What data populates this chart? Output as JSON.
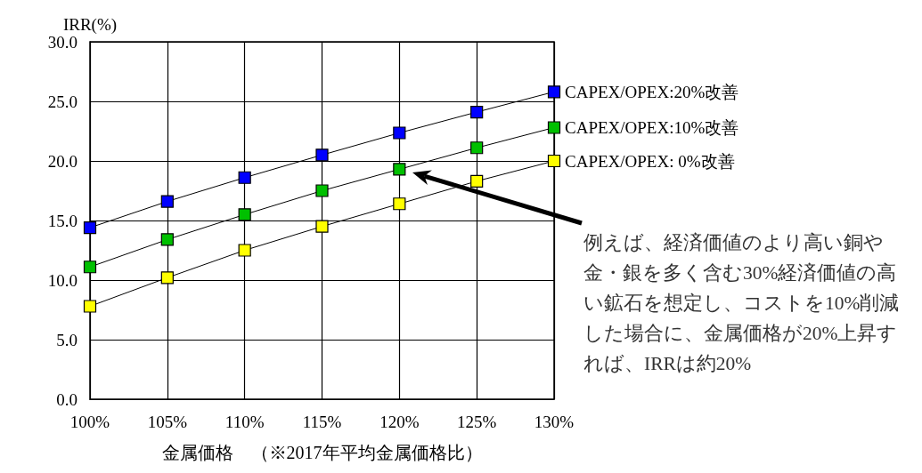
{
  "chart_data": {
    "type": "line",
    "ylabel": "IRR(%)",
    "xlabel": "金属価格　（※2017年平均金属価格比）",
    "categories": [
      "100%",
      "105%",
      "110%",
      "115%",
      "120%",
      "125%",
      "130%"
    ],
    "series": [
      {
        "name": "CAPEX/OPEX:20%改善",
        "color": "#0000ff",
        "values": [
          14.4,
          16.6,
          18.6,
          20.5,
          22.35,
          24.1,
          25.8
        ]
      },
      {
        "name": "CAPEX/OPEX:10%改善",
        "color": "#00c000",
        "values": [
          11.1,
          13.4,
          15.5,
          17.5,
          19.3,
          21.1,
          22.8
        ]
      },
      {
        "name": "CAPEX/OPEX: 0%改善",
        "color": "#ffff00",
        "values": [
          7.8,
          10.2,
          12.5,
          14.5,
          16.4,
          18.3,
          20.0
        ]
      }
    ],
    "ylim": [
      0,
      30
    ],
    "yticks": [
      {
        "value": 0,
        "label": "0.0"
      },
      {
        "value": 5,
        "label": "5.0"
      },
      {
        "value": 10,
        "label": "10.0"
      },
      {
        "value": 15,
        "label": "15.0"
      },
      {
        "value": 20,
        "label": "20.0"
      },
      {
        "value": 25,
        "label": "25.0"
      },
      {
        "value": 30,
        "label": "30.0"
      }
    ],
    "grid": true,
    "legend": false,
    "marker": "square",
    "line_style": "solid",
    "annotations": [
      "例えば、経済価値のより高い銅や金・銀を多く含む30%経済価値の高い鉱石を想定し、コストを10%削減した場合に、金属価格が20%上昇すれば、IRRは約20%"
    ]
  }
}
